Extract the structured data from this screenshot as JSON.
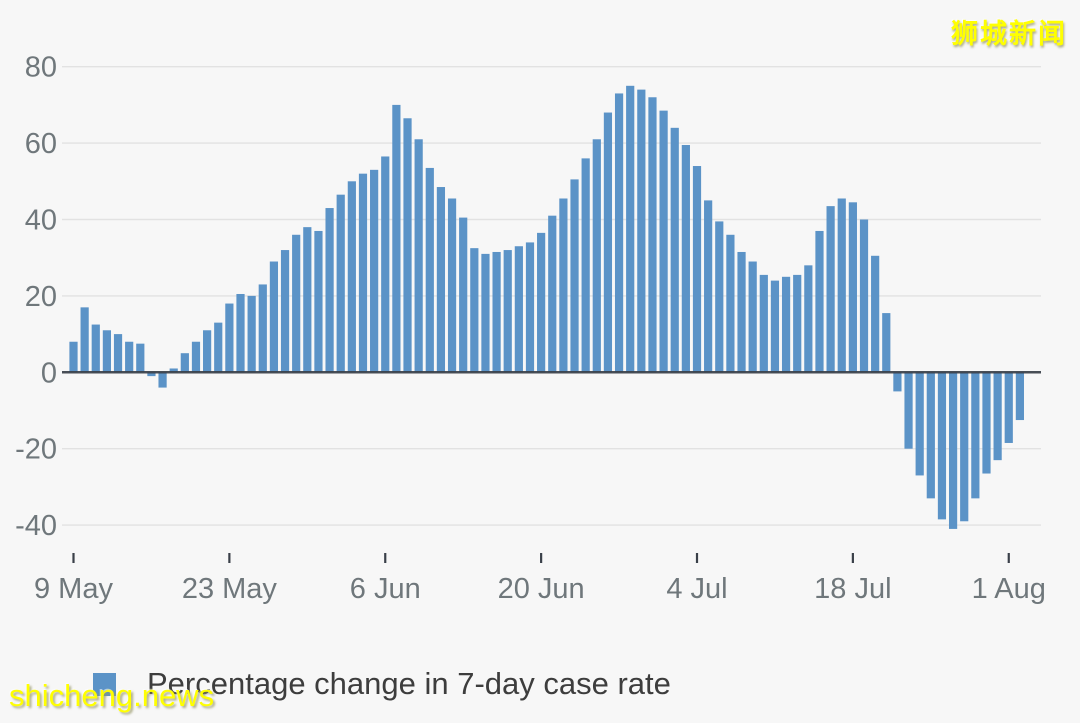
{
  "watermarks": {
    "top_right": "狮城新闻",
    "bottom_left": "shicheng.news"
  },
  "legend": {
    "label": "Percentage change in 7-day case rate",
    "swatch_color": "#5b93c7"
  },
  "colors": {
    "background": "#f7f7f7",
    "bar": "#5b93c7",
    "gridline": "#e2e2e2",
    "zero_line": "#3a4049",
    "tick_mark": "#3a4049",
    "axis_text": "#6f777b",
    "legend_text": "#3d3d3d",
    "watermark": "#ffff00"
  },
  "chart_data": {
    "type": "bar",
    "title": "",
    "series_name": "Percentage change in 7-day case rate",
    "start_date": "9 May",
    "end_date": "2 Aug",
    "values": [
      8,
      17,
      12.5,
      11,
      10,
      8,
      7.5,
      -1,
      -4,
      1,
      5,
      8,
      11,
      13,
      18,
      20.5,
      20,
      23,
      29,
      32,
      36,
      38,
      37,
      43,
      46.5,
      50,
      52,
      53,
      56.5,
      70,
      66.5,
      61,
      53.5,
      48.5,
      45.5,
      40.5,
      32.5,
      31,
      31.5,
      32,
      33,
      34,
      36.5,
      41,
      45.5,
      50.5,
      56,
      61,
      68,
      73,
      75,
      74,
      72,
      68.5,
      64,
      59.5,
      54,
      45,
      39.5,
      36,
      31.5,
      29,
      25.5,
      24,
      25,
      25.5,
      28,
      37,
      43.5,
      45.5,
      44.5,
      40,
      30.5,
      15.5,
      -5,
      -20,
      -27,
      -33,
      -38.5,
      -41,
      -39,
      -33,
      -26.5,
      -23,
      -18.5,
      -12.5
    ],
    "x_tick_labels": [
      "9 May",
      "23 May",
      "6 Jun",
      "20 Jun",
      "4 Jul",
      "18 Jul",
      "1 Aug"
    ],
    "x_tick_indices": [
      0,
      14,
      28,
      42,
      56,
      70,
      84
    ],
    "y_ticks": [
      -40,
      -20,
      0,
      20,
      40,
      60,
      80
    ],
    "ylim": [
      -45,
      85
    ],
    "grid": "horizontal",
    "legend_position": "bottom"
  }
}
